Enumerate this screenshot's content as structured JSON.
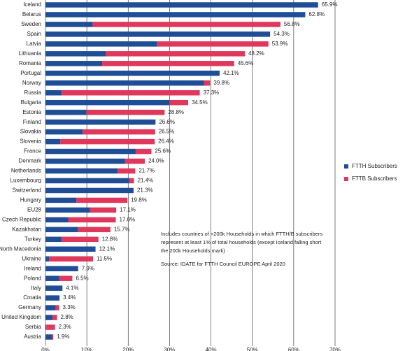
{
  "chart_data": {
    "type": "stacked-hbar",
    "categories": [
      "Iceland",
      "Belarus",
      "Sweden",
      "Spain",
      "Latvia",
      "Lithuania",
      "Romania",
      "Portugal",
      "Norway",
      "Russia",
      "Bulgaria",
      "Estonia",
      "Finland",
      "Slovakia",
      "Slovenia",
      "France",
      "Denmark",
      "Netherlands",
      "Luxembourg",
      "Switzerland",
      "Hungary",
      "EU28",
      "Czech Republic",
      "Kazakhstan",
      "Turkey",
      "North Macedonia",
      "Ukraine",
      "Ireland",
      "Poland",
      "Italy",
      "Croatia",
      "Germany",
      "United Kingdom",
      "Serbia",
      "Austria"
    ],
    "series": [
      {
        "name": "FTTH Subscribers",
        "color": "#1f4e96",
        "values": [
          65.9,
          62.8,
          11.4,
          54.3,
          27.0,
          14.6,
          13.7,
          42.1,
          38.3,
          3.8,
          30.0,
          9.9,
          26.6,
          9.0,
          3.6,
          21.8,
          19.2,
          17.4,
          20.2,
          21.3,
          7.5,
          10.8,
          5.5,
          7.9,
          3.8,
          12.1,
          0.9,
          7.9,
          3.3,
          4.1,
          3.4,
          2.5,
          1.7,
          0.2,
          1.6
        ]
      },
      {
        "name": "FTTB Subscribers",
        "color": "#e0385c",
        "values": [
          0,
          0,
          45.4,
          0,
          26.9,
          33.6,
          31.9,
          0,
          1.5,
          33.5,
          4.5,
          18.9,
          0,
          17.5,
          22.8,
          3.8,
          4.8,
          4.3,
          1.2,
          0,
          12.3,
          6.3,
          11.5,
          7.8,
          9.0,
          0,
          10.6,
          0,
          3.2,
          0,
          0,
          0.8,
          1.1,
          2.1,
          0.3
        ]
      }
    ],
    "totals": [
      65.9,
      62.8,
      56.8,
      54.3,
      53.9,
      48.2,
      45.6,
      42.1,
      39.8,
      37.3,
      34.5,
      28.8,
      26.6,
      26.5,
      26.4,
      25.6,
      24.0,
      21.7,
      21.4,
      21.3,
      19.8,
      17.1,
      17.0,
      15.7,
      12.8,
      12.1,
      11.5,
      7.9,
      6.5,
      4.1,
      3.4,
      3.3,
      2.8,
      2.3,
      1.9
    ],
    "total_labels": [
      "65.9%",
      "62.8%",
      "56.8%",
      "54.3%",
      "53.9%",
      "48.2%",
      "45.6%",
      "42.1%",
      "39.8%",
      "37.3%",
      "34.5%",
      "28.8%",
      "26.6%",
      "26.5%",
      "26.4%",
      "25.6%",
      "24.0%",
      "21.7%",
      "21.4%",
      "21.3%",
      "19.8%",
      "17.1%",
      "17.0%",
      "15.7%",
      "12.8%",
      "12.1%",
      "11.5%",
      "7.9%",
      "6.5%",
      "4.1%",
      "3.4%",
      "3.3%",
      "2.8%",
      "2.3%",
      "1.9%"
    ],
    "xlim": [
      0,
      70
    ],
    "xticks": [
      {
        "value": 0,
        "label": "0%"
      },
      {
        "value": 10,
        "label": "10%"
      },
      {
        "value": 20,
        "label": "20%"
      },
      {
        "value": 30,
        "label": "30%"
      },
      {
        "value": 40,
        "label": "40%"
      },
      {
        "value": 50,
        "label": "50%"
      },
      {
        "value": 60,
        "label": "60%"
      },
      {
        "value": 70,
        "label": "70%"
      }
    ],
    "grid": true,
    "notes": [
      "Includes countries of +200k Households in which FTTH/B  subscribers",
      "represent at least 1% of total households  (except Iceland falling short",
      "the 200k Households mark)"
    ],
    "source": "Source: IDATE for FTTH Council EUROPE  April 2020"
  }
}
